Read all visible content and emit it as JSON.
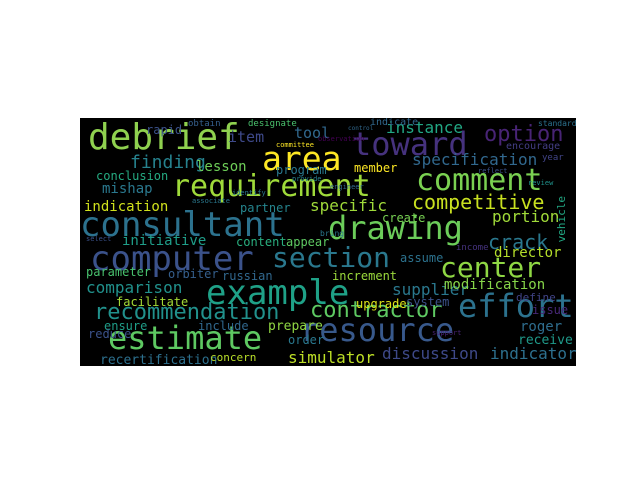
{
  "word_cloud": {
    "palette": {
      "purple": "#44106a",
      "indigo": "#3b528b",
      "blue": "#31688e",
      "teal": "#21918c",
      "sea": "#26a784",
      "green": "#5ec962",
      "lime": "#b5de2b",
      "yellow": "#fde725"
    },
    "words": [
      {
        "text": "debrief",
        "color": "#8fd14f"
      },
      {
        "text": "area",
        "color": "#fde725"
      },
      {
        "text": "toward",
        "color": "#46327e"
      },
      {
        "text": "option",
        "color": "#482475"
      },
      {
        "text": "requirement",
        "color": "#9fda3a"
      },
      {
        "text": "comment",
        "color": "#7ad151"
      },
      {
        "text": "consultant",
        "color": "#2c728e"
      },
      {
        "text": "drawing",
        "color": "#6ccd5a"
      },
      {
        "text": "computer",
        "color": "#3b528b"
      },
      {
        "text": "section",
        "color": "#2a788e"
      },
      {
        "text": "center",
        "color": "#8fd744"
      },
      {
        "text": "example",
        "color": "#1fa187"
      },
      {
        "text": "effort",
        "color": "#2c728e"
      },
      {
        "text": "estimate",
        "color": "#5ec962"
      },
      {
        "text": "resource",
        "color": "#38598c"
      },
      {
        "text": "recommendation",
        "color": "#21918c"
      },
      {
        "text": "contractor",
        "color": "#5ec962"
      },
      {
        "text": "finding",
        "color": "#26828e"
      },
      {
        "text": "specification",
        "color": "#31688e"
      },
      {
        "text": "competitive",
        "color": "#c8e020"
      },
      {
        "text": "crack",
        "color": "#2a788e"
      },
      {
        "text": "mishap",
        "color": "#2a788e"
      },
      {
        "text": "indication",
        "color": "#d0e11c"
      },
      {
        "text": "specific",
        "color": "#9fda3a"
      },
      {
        "text": "portion",
        "color": "#a0da39"
      },
      {
        "text": "initiative",
        "color": "#1f9e89"
      },
      {
        "text": "director",
        "color": "#b5de2b"
      },
      {
        "text": "comparison",
        "color": "#21918c"
      },
      {
        "text": "supplier",
        "color": "#2a788e"
      },
      {
        "text": "modification",
        "color": "#86d549"
      },
      {
        "text": "parameter",
        "color": "#48c16e"
      },
      {
        "text": "discussion",
        "color": "#3e4989"
      },
      {
        "text": "indicator",
        "color": "#2d708e"
      },
      {
        "text": "simulator",
        "color": "#bddf26"
      },
      {
        "text": "recertification",
        "color": "#2d708e"
      },
      {
        "text": "instance",
        "color": "#22a884"
      },
      {
        "text": "item",
        "color": "#3e4989"
      },
      {
        "text": "tool",
        "color": "#31688e"
      },
      {
        "text": "lesson",
        "color": "#6ece58"
      },
      {
        "text": "conclusion",
        "color": "#25ab82"
      },
      {
        "text": "program",
        "color": "#2a788e"
      },
      {
        "text": "member",
        "color": "#fde725"
      },
      {
        "text": "partner",
        "color": "#25858e"
      },
      {
        "text": "create",
        "color": "#77d153"
      },
      {
        "text": "assume",
        "color": "#2c728e"
      },
      {
        "text": "content",
        "color": "#29af7f"
      },
      {
        "text": "appear",
        "color": "#5ec962"
      },
      {
        "text": "orbiter",
        "color": "#355f8d"
      },
      {
        "text": "russian",
        "color": "#31688e"
      },
      {
        "text": "increment",
        "color": "#9bd93c"
      },
      {
        "text": "facilitate",
        "color": "#a5db36"
      },
      {
        "text": "upgrade",
        "color": "#dde318"
      },
      {
        "text": "system",
        "color": "#3b528b"
      },
      {
        "text": "define",
        "color": "#414487"
      },
      {
        "text": "issue",
        "color": "#482878"
      },
      {
        "text": "ensure",
        "color": "#1f9e89"
      },
      {
        "text": "include",
        "color": "#31688e"
      },
      {
        "text": "prepare",
        "color": "#90d743"
      },
      {
        "text": "order",
        "color": "#2a788e"
      },
      {
        "text": "roger",
        "color": "#2e6d8e"
      },
      {
        "text": "receive",
        "color": "#1f9a8a"
      },
      {
        "text": "concern",
        "color": "#b8de29"
      },
      {
        "text": "reduce",
        "color": "#3b528b"
      },
      {
        "text": "encourage",
        "color": "#433e85"
      },
      {
        "text": "vehicle",
        "color": "#22a884"
      },
      {
        "text": "rapid",
        "color": "#3b528b"
      },
      {
        "text": "designate",
        "color": "#4ac16d"
      },
      {
        "text": "indicate",
        "color": "#31688e"
      },
      {
        "text": "standard",
        "color": "#2c728e"
      },
      {
        "text": "year",
        "color": "#414487"
      },
      {
        "text": "obtain",
        "color": "#355f8d"
      },
      {
        "text": "income",
        "color": "#46337f"
      },
      {
        "text": "select",
        "color": "#3b528b"
      },
      {
        "text": "bring",
        "color": "#2a788e"
      },
      {
        "text": "provide",
        "color": "#26828e"
      },
      {
        "text": "committee",
        "color": "#fde725"
      },
      {
        "text": "associate",
        "color": "#2a788e"
      },
      {
        "text": "engineer",
        "color": "#31688e"
      },
      {
        "text": "reflect",
        "color": "#3b528b"
      },
      {
        "text": "observation",
        "color": "#440154"
      },
      {
        "text": "review",
        "color": "#20928c"
      },
      {
        "text": "control",
        "color": "#31688e"
      },
      {
        "text": "support",
        "color": "#482475"
      },
      {
        "text": "identify",
        "color": "#2a788e"
      }
    ]
  }
}
